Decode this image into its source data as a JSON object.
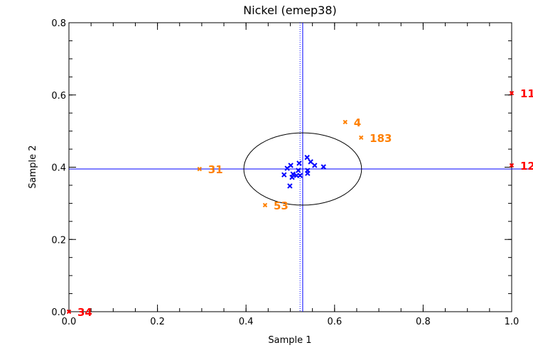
{
  "chart_data": {
    "type": "scatter",
    "title": "Nickel (emep38)",
    "xlabel": "Sample 1",
    "ylabel": "Sample 2",
    "xlim": [
      0,
      1.0
    ],
    "ylim": [
      0,
      0.8
    ],
    "xticks": [
      "0.0",
      "0.2",
      "0.4",
      "0.6",
      "0.8",
      "1.0"
    ],
    "yticks": [
      "0.0",
      "0.2",
      "0.4",
      "0.6",
      "0.8"
    ],
    "xtick_values": [
      0,
      0.2,
      0.4,
      0.6,
      0.8,
      1.0
    ],
    "ytick_values": [
      0,
      0.2,
      0.4,
      0.6,
      0.8
    ],
    "grid": false,
    "colors": {
      "cluster": "#0000ff",
      "moderate": "#ff8000",
      "extreme": "#ff0000",
      "ellipse": "#000000",
      "mean": "#0000ff"
    },
    "cluster_points": [
      [
        0.538,
        0.427
      ],
      [
        0.546,
        0.415
      ],
      [
        0.555,
        0.405
      ],
      [
        0.575,
        0.401
      ],
      [
        0.52,
        0.411
      ],
      [
        0.501,
        0.405
      ],
      [
        0.493,
        0.397
      ],
      [
        0.486,
        0.379
      ],
      [
        0.506,
        0.381
      ],
      [
        0.504,
        0.372
      ],
      [
        0.499,
        0.348
      ],
      [
        0.518,
        0.391
      ],
      [
        0.522,
        0.377
      ],
      [
        0.514,
        0.377
      ],
      [
        0.539,
        0.391
      ],
      [
        0.539,
        0.383
      ]
    ],
    "labeled_points": [
      {
        "label": "4",
        "x": 0.624,
        "y": 0.525,
        "group": "moderate"
      },
      {
        "label": "183",
        "x": 0.66,
        "y": 0.482,
        "group": "moderate"
      },
      {
        "label": "31",
        "x": 0.295,
        "y": 0.395,
        "group": "moderate"
      },
      {
        "label": "53",
        "x": 0.443,
        "y": 0.295,
        "group": "moderate"
      },
      {
        "label": "11",
        "x": 1.0,
        "y": 0.605,
        "group": "extreme"
      },
      {
        "label": "12",
        "x": 1.0,
        "y": 0.405,
        "group": "extreme"
      },
      {
        "label": "34",
        "x": 0.0,
        "y": 0.0,
        "group": "extreme"
      }
    ],
    "mean_x": 0.528,
    "median_x": 0.522,
    "mean_y": 0.395,
    "ellipse": {
      "cx": 0.528,
      "cy": 0.395,
      "rx": 0.133,
      "ry": 0.1
    }
  }
}
